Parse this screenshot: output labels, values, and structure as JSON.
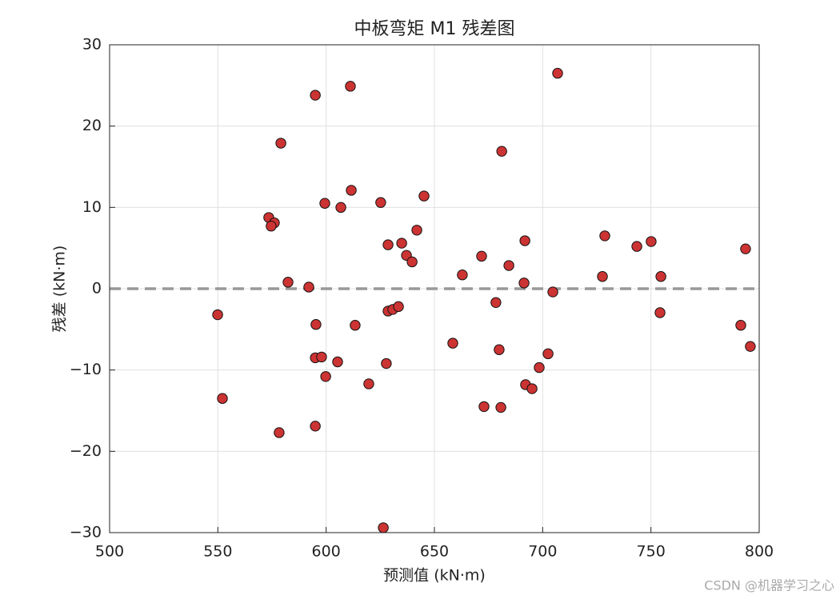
{
  "chart_data": {
    "type": "scatter",
    "title": "中板弯矩 M1 残差图",
    "x_label": "预测值 (kN·m)",
    "y_label": "残差 (kN·m)",
    "watermark": "CSDN @机器学习之心",
    "series": [
      {
        "color": "#cc3333",
        "x": [
          549.9,
          552.1,
          573.5,
          576.1,
          574.6,
          579.1,
          578.3,
          582.4,
          592.0,
          595.0,
          595.3,
          595.0,
          597.9,
          595.0,
          599.4,
          599.8,
          605.3,
          606.8,
          611.2,
          611.6,
          613.4,
          619.7,
          625.2,
          626.4,
          627.8,
          628.6,
          628.6,
          630.8,
          633.4,
          634.9,
          637.1,
          639.7,
          641.9,
          645.2,
          658.5,
          662.9,
          671.8,
          672.9,
          678.4,
          679.9,
          680.7,
          681.1,
          684.4,
          691.4,
          691.8,
          692.1,
          695.1,
          698.4,
          702.5,
          704.7,
          706.9,
          727.6,
          728.7,
          743.5,
          750.1,
          754.6,
          754.2,
          791.5,
          793.7,
          795.9
        ],
        "values": [
          -3.2,
          -13.5,
          8.75,
          8.1,
          7.7,
          17.9,
          -17.7,
          0.8,
          0.2,
          23.8,
          -4.4,
          -8.5,
          -8.4,
          -16.9,
          10.5,
          -10.8,
          -9.0,
          10.0,
          24.9,
          12.1,
          -4.5,
          -11.7,
          10.6,
          -29.4,
          -9.2,
          5.4,
          -2.75,
          -2.55,
          -2.2,
          5.6,
          4.1,
          3.3,
          7.2,
          11.4,
          -6.7,
          1.7,
          4.0,
          -14.5,
          -1.7,
          -7.5,
          -14.6,
          16.9,
          2.85,
          0.7,
          5.9,
          -11.8,
          -12.3,
          -9.7,
          -8.0,
          -0.4,
          26.5,
          1.5,
          6.5,
          5.2,
          5.8,
          1.5,
          -2.95,
          -4.5,
          4.9,
          -7.1
        ]
      }
    ],
    "reference_line": 0,
    "xlim": [
      500,
      800
    ],
    "xticks": [
      500,
      550,
      600,
      650,
      700,
      750,
      800
    ],
    "ylim": [
      -30,
      30
    ],
    "yticks": [
      {
        "value": -30,
        "label": "−30"
      },
      {
        "value": -20,
        "label": "−20"
      },
      {
        "value": -10,
        "label": "−10"
      },
      0,
      10,
      20,
      30
    ],
    "grid": true
  }
}
